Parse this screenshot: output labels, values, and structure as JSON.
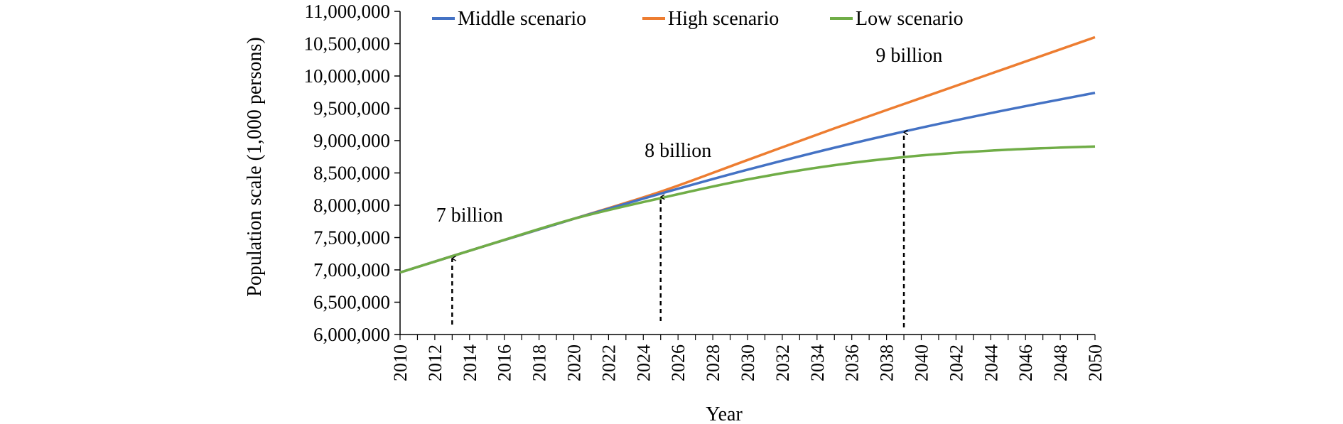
{
  "chart_data": {
    "type": "line",
    "title": "",
    "xlabel": "Year",
    "ylabel": "Population scale (1,000 persons)",
    "xlim": [
      2010,
      2050
    ],
    "ylim": [
      6000000,
      11000000
    ],
    "y_ticks": [
      6000000,
      6500000,
      7000000,
      7500000,
      8000000,
      8500000,
      9000000,
      9500000,
      10000000,
      10500000,
      11000000
    ],
    "y_tick_labels": [
      "6,000,000",
      "6,500,000",
      "7,000,000",
      "7,500,000",
      "8,000,000",
      "8,500,000",
      "9,000,000",
      "9,500,000",
      "10,000,000",
      "10,500,000",
      "11,000,000"
    ],
    "x_ticks": [
      2010,
      2012,
      2014,
      2016,
      2018,
      2020,
      2022,
      2024,
      2026,
      2028,
      2030,
      2032,
      2034,
      2036,
      2038,
      2040,
      2042,
      2044,
      2046,
      2048,
      2050
    ],
    "x_tick_labels": [
      "2010",
      "2012",
      "2014",
      "2016",
      "2018",
      "2020",
      "2022",
      "2024",
      "2026",
      "2028",
      "2030",
      "2032",
      "2034",
      "2036",
      "2038",
      "2040",
      "2042",
      "2044",
      "2046",
      "2048",
      "2050"
    ],
    "grid": false,
    "legend_position": "top",
    "x": [
      2010,
      2015,
      2020,
      2025,
      2030,
      2035,
      2040,
      2045,
      2050
    ],
    "series": [
      {
        "name": "Middle scenario",
        "color": "#4472C4",
        "values": [
          6960000,
          7380000,
          7790000,
          8180000,
          8550000,
          8890000,
          9200000,
          9480000,
          9740000
        ]
      },
      {
        "name": "High scenario",
        "color": "#ED7D31",
        "values": [
          6960000,
          7380000,
          7790000,
          8210000,
          8700000,
          9190000,
          9660000,
          10130000,
          10600000
        ]
      },
      {
        "name": "Low scenario",
        "color": "#70AD47",
        "values": [
          6960000,
          7380000,
          7790000,
          8110000,
          8400000,
          8620000,
          8770000,
          8860000,
          8910000
        ]
      }
    ],
    "annotations": [
      {
        "text": "7 billion",
        "year": 2013,
        "arrow_to": 7200000,
        "label_year": 2014,
        "label_value": 7750000
      },
      {
        "text": "8 billion",
        "year": 2025,
        "arrow_to": 8150000,
        "label_year": 2026,
        "label_value": 8750000
      },
      {
        "text": "9 billion",
        "year": 2039,
        "arrow_to": 9150000,
        "label_year": 2039.3,
        "label_value": 10220000
      }
    ]
  }
}
